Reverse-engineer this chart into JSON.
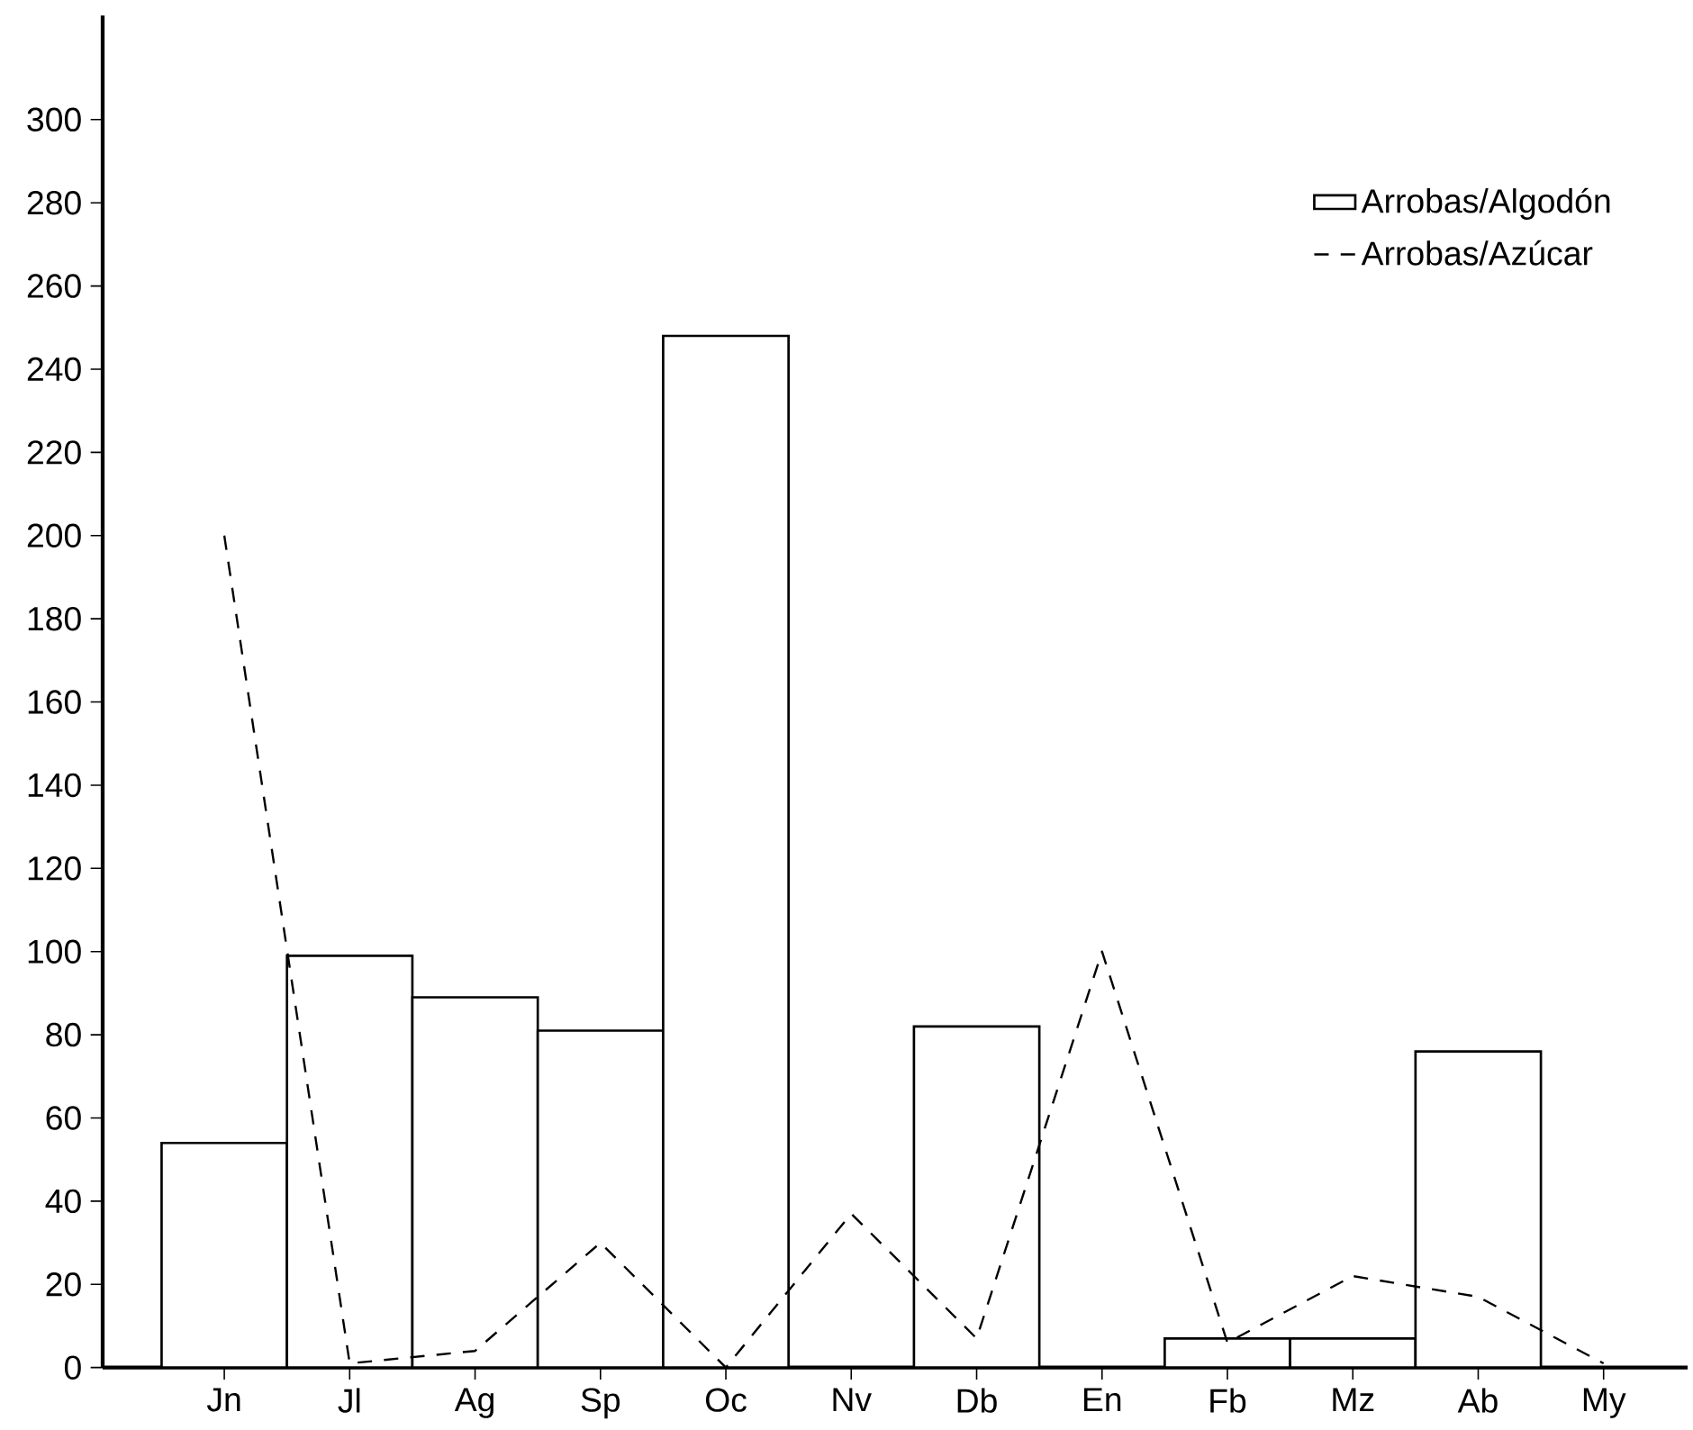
{
  "chart_data": {
    "type": "bar",
    "categories": [
      "Jn",
      "Jl",
      "Ag",
      "Sp",
      "Oc",
      "Nv",
      "Db",
      "En",
      "Fb",
      "Mz",
      "Ab",
      "My"
    ],
    "series": [
      {
        "name": "Arrobas/Algodón",
        "color": "#000000",
        "values": [
          54,
          99,
          89,
          81,
          248,
          0,
          82,
          0,
          7,
          7,
          76,
          0
        ]
      },
      {
        "name": "Arrobas/Azúcar",
        "type": "line",
        "line_style": "dashed",
        "color": "#000000",
        "values": [
          200,
          1,
          4,
          30,
          0,
          37,
          7,
          100,
          6,
          22,
          17,
          1
        ]
      }
    ],
    "ylim": [
      0,
      325
    ],
    "yticks": [
      0,
      20,
      40,
      60,
      80,
      100,
      120,
      140,
      160,
      180,
      200,
      220,
      240,
      260,
      280,
      300
    ],
    "legend": "top right"
  }
}
